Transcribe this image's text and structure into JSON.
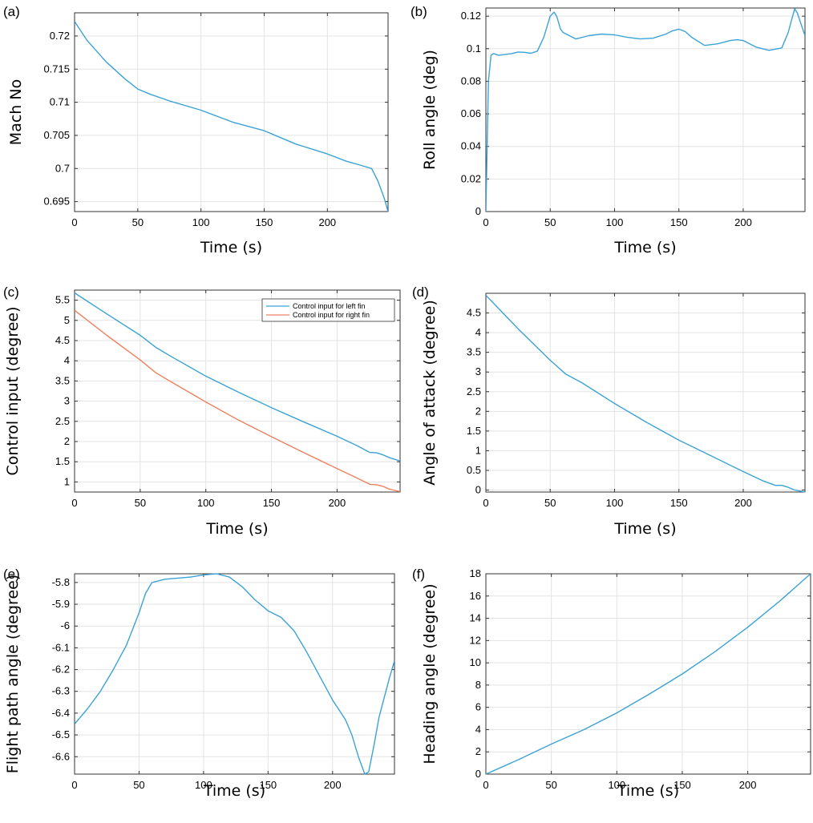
{
  "chart_data": [
    {
      "panel": "(a)",
      "type": "line",
      "xlabel": "Time (s)",
      "ylabel": "Mach No",
      "xlim": [
        0,
        248
      ],
      "ylim": [
        0.6935,
        0.7235
      ],
      "xticks": [
        0,
        50,
        100,
        150,
        200
      ],
      "yticks": [
        0.695,
        0.7,
        0.705,
        0.71,
        0.715,
        0.72
      ],
      "grid": true,
      "series": [
        {
          "color": "#3aa3d6",
          "x": [
            0,
            10,
            25,
            40,
            50,
            60,
            75,
            100,
            125,
            150,
            160,
            175,
            200,
            215,
            228,
            235,
            240,
            245,
            248
          ],
          "y": [
            0.7222,
            0.7193,
            0.7161,
            0.7135,
            0.712,
            0.7112,
            0.7102,
            0.7088,
            0.707,
            0.7057,
            0.7049,
            0.7037,
            0.7022,
            0.7011,
            0.7004,
            0.7,
            0.6981,
            0.6955,
            0.6935
          ]
        }
      ]
    },
    {
      "panel": "(b)",
      "type": "line",
      "xlabel": "Time (s)",
      "ylabel": "Roll angle (deg)",
      "xlim": [
        0,
        248
      ],
      "ylim": [
        0,
        0.125
      ],
      "xticks": [
        0,
        50,
        100,
        150,
        200
      ],
      "yticks": [
        0,
        0.02,
        0.04,
        0.06,
        0.08,
        0.1,
        0.12
      ],
      "grid": true,
      "series": [
        {
          "color": "#3aa3d6",
          "x": [
            0,
            2,
            4,
            6,
            10,
            20,
            25,
            30,
            35,
            40,
            45,
            50,
            53,
            55,
            58,
            60,
            70,
            80,
            90,
            100,
            110,
            120,
            130,
            140,
            145,
            150,
            155,
            160,
            170,
            180,
            190,
            195,
            200,
            210,
            220,
            230,
            235,
            238,
            240,
            242,
            245,
            248
          ],
          "y": [
            0,
            0.08,
            0.096,
            0.097,
            0.096,
            0.097,
            0.098,
            0.0978,
            0.0972,
            0.0985,
            0.107,
            0.12,
            0.1225,
            0.12,
            0.112,
            0.11,
            0.106,
            0.108,
            0.109,
            0.1085,
            0.107,
            0.106,
            0.1065,
            0.109,
            0.111,
            0.112,
            0.1105,
            0.107,
            0.102,
            0.103,
            0.105,
            0.1055,
            0.105,
            0.101,
            0.099,
            0.1005,
            0.11,
            0.119,
            0.1245,
            0.122,
            0.115,
            0.108
          ]
        }
      ]
    },
    {
      "panel": "(c)",
      "type": "line",
      "xlabel": "Time (s)",
      "ylabel": "Control input (degree)",
      "xlim": [
        0,
        248
      ],
      "ylim": [
        0.75,
        5.75
      ],
      "xticks": [
        0,
        50,
        100,
        150,
        200
      ],
      "yticks": [
        1,
        1.5,
        2,
        2.5,
        3,
        3.5,
        4,
        4.5,
        5,
        5.5
      ],
      "grid": true,
      "legend": "top-right",
      "series": [
        {
          "name": "Control input for left fin",
          "color": "#3aa3d6",
          "x": [
            0,
            25,
            50,
            62,
            75,
            100,
            125,
            150,
            175,
            200,
            215,
            225,
            230,
            235,
            240,
            248
          ],
          "y": [
            5.68,
            5.15,
            4.63,
            4.33,
            4.08,
            3.62,
            3.22,
            2.84,
            2.48,
            2.13,
            1.9,
            1.73,
            1.72,
            1.67,
            1.6,
            1.52
          ]
        },
        {
          "name": "Control input for right fin",
          "color": "#f08060",
          "x": [
            0,
            25,
            50,
            62,
            75,
            100,
            125,
            150,
            175,
            200,
            215,
            225,
            230,
            235,
            240,
            248
          ],
          "y": [
            5.25,
            4.62,
            4.02,
            3.7,
            3.45,
            2.98,
            2.53,
            2.12,
            1.72,
            1.33,
            1.1,
            0.94,
            0.93,
            0.89,
            0.82,
            0.76
          ]
        }
      ]
    },
    {
      "panel": "(d)",
      "type": "line",
      "xlabel": "Time (s)",
      "ylabel": "Angle of attack (degree)",
      "xlim": [
        0,
        248
      ],
      "ylim": [
        -0.05,
        5.0
      ],
      "xticks": [
        0,
        50,
        100,
        150,
        200
      ],
      "yticks": [
        0,
        0.5,
        1,
        1.5,
        2,
        2.5,
        3,
        3.5,
        4,
        4.5
      ],
      "grid": true,
      "series": [
        {
          "color": "#3aa3d6",
          "x": [
            0,
            25,
            50,
            62,
            75,
            100,
            125,
            150,
            175,
            200,
            215,
            225,
            230,
            235,
            240,
            248
          ],
          "y": [
            4.95,
            4.1,
            3.3,
            2.95,
            2.72,
            2.2,
            1.72,
            1.27,
            0.87,
            0.47,
            0.24,
            0.12,
            0.12,
            0.07,
            0.0,
            -0.05
          ]
        }
      ]
    },
    {
      "panel": "(e)",
      "type": "line",
      "xlabel": "Time (s)",
      "ylabel": "Flight path angle (degree)",
      "xlim": [
        0,
        248
      ],
      "ylim": [
        -6.68,
        -5.76
      ],
      "xticks": [
        0,
        50,
        100,
        150,
        200
      ],
      "yticks": [
        -6.6,
        -6.5,
        -6.4,
        -6.3,
        -6.2,
        -6.1,
        -6.0,
        -5.9,
        -5.8
      ],
      "ytick_labels": [
        "-6.6",
        "-6.5",
        "-6.4",
        "-6.3",
        "-6.2",
        "-6.1",
        "-6",
        "-5.9",
        "-5.8"
      ],
      "grid": true,
      "series": [
        {
          "color": "#3aa3d6",
          "x": [
            0,
            10,
            20,
            30,
            40,
            50,
            55,
            60,
            70,
            80,
            90,
            100,
            110,
            120,
            130,
            140,
            150,
            160,
            170,
            180,
            190,
            200,
            210,
            215,
            220,
            225,
            228,
            232,
            236,
            240,
            244,
            248
          ],
          "y": [
            -6.45,
            -6.38,
            -6.3,
            -6.2,
            -6.09,
            -5.94,
            -5.85,
            -5.8,
            -5.785,
            -5.78,
            -5.775,
            -5.765,
            -5.76,
            -5.775,
            -5.82,
            -5.88,
            -5.93,
            -5.96,
            -6.02,
            -6.12,
            -6.23,
            -6.34,
            -6.43,
            -6.5,
            -6.6,
            -6.68,
            -6.67,
            -6.55,
            -6.42,
            -6.33,
            -6.24,
            -6.16
          ]
        }
      ]
    },
    {
      "panel": "(f)",
      "type": "line",
      "xlabel": "Time (s)",
      "ylabel": "Heading angle (degree)",
      "xlim": [
        0,
        248
      ],
      "ylim": [
        0,
        18
      ],
      "xticks": [
        0,
        50,
        100,
        150,
        200
      ],
      "yticks": [
        0,
        2,
        4,
        6,
        8,
        10,
        12,
        14,
        16,
        18
      ],
      "grid": true,
      "series": [
        {
          "color": "#3aa3d6",
          "x": [
            0,
            25,
            50,
            75,
            100,
            125,
            150,
            175,
            200,
            225,
            248
          ],
          "y": [
            0,
            1.3,
            2.7,
            4.0,
            5.5,
            7.2,
            9.0,
            11.0,
            13.2,
            15.6,
            18.0
          ]
        }
      ]
    }
  ]
}
